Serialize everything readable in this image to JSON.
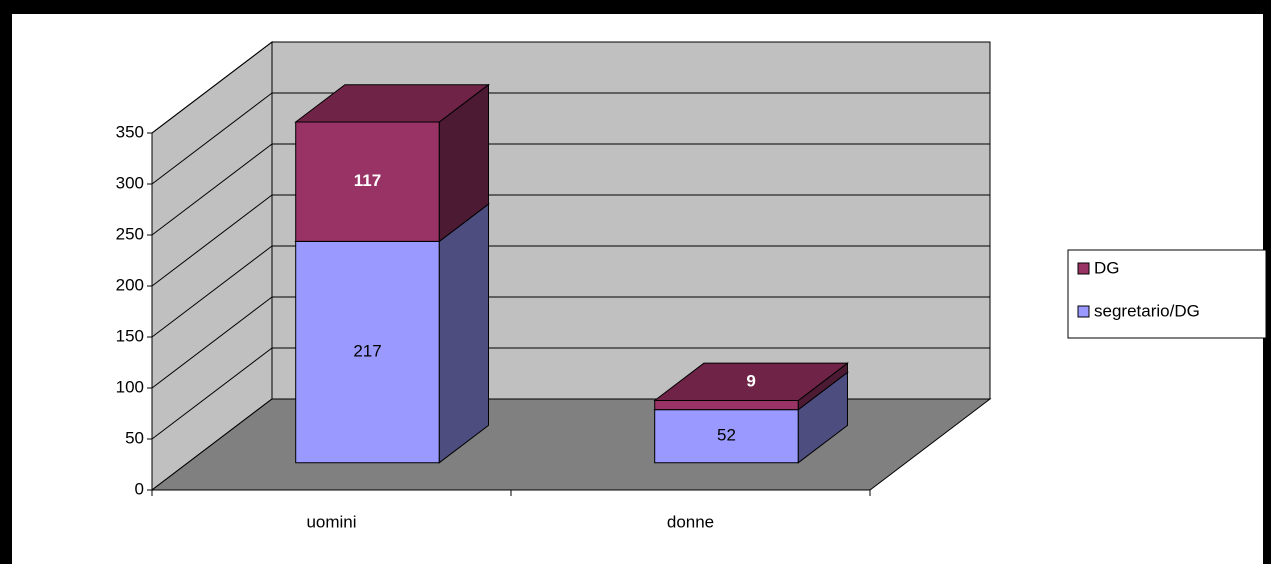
{
  "chart_data": {
    "type": "bar3d_stacked",
    "categories": [
      "uomini",
      "donne"
    ],
    "series": [
      {
        "name": "segretario/DG",
        "color": "#9999ff",
        "side_color": "#4d4d80",
        "top_color": "#7b7bcc",
        "label_color": "#000000",
        "values": [
          217,
          52
        ]
      },
      {
        "name": "DG",
        "color": "#993366",
        "side_color": "#4d1a33",
        "top_color": "#6f2447",
        "label_color": "#ffffff",
        "values": [
          117,
          9
        ]
      }
    ],
    "ylim": [
      0,
      350
    ],
    "yticks": [
      0,
      50,
      100,
      150,
      200,
      250,
      300,
      350
    ],
    "grid": true,
    "legend": "right"
  }
}
